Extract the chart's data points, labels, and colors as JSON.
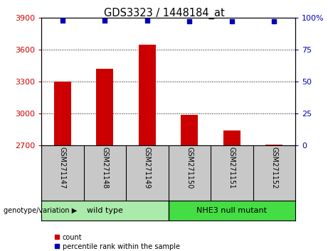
{
  "title": "GDS3323 / 1448184_at",
  "samples": [
    "GSM271147",
    "GSM271148",
    "GSM271149",
    "GSM271150",
    "GSM271151",
    "GSM271152"
  ],
  "counts": [
    3300,
    3420,
    3650,
    2990,
    2840,
    2710
  ],
  "percentile_ranks": [
    98,
    98,
    98,
    97,
    97,
    97
  ],
  "ylim_left": [
    2700,
    3900
  ],
  "yticks_left": [
    2700,
    3000,
    3300,
    3600,
    3900
  ],
  "ylim_right": [
    0,
    100
  ],
  "yticks_right": [
    0,
    25,
    50,
    75,
    100
  ],
  "bar_color": "#cc0000",
  "dot_color": "#0000bb",
  "groups": [
    {
      "label": "wild type",
      "indices": [
        0,
        1,
        2
      ],
      "color": "#aaeaaa"
    },
    {
      "label": "NHE3 null mutant",
      "indices": [
        3,
        4,
        5
      ],
      "color": "#44dd44"
    }
  ],
  "group_label_prefix": "genotype/variation",
  "tick_label_color_left": "#cc0000",
  "tick_label_color_right": "#0000bb",
  "legend_count_label": "count",
  "legend_percentile_label": "percentile rank within the sample",
  "sample_bg_color": "#c8c8c8",
  "figwidth": 4.61,
  "figheight": 3.54,
  "dpi": 100
}
